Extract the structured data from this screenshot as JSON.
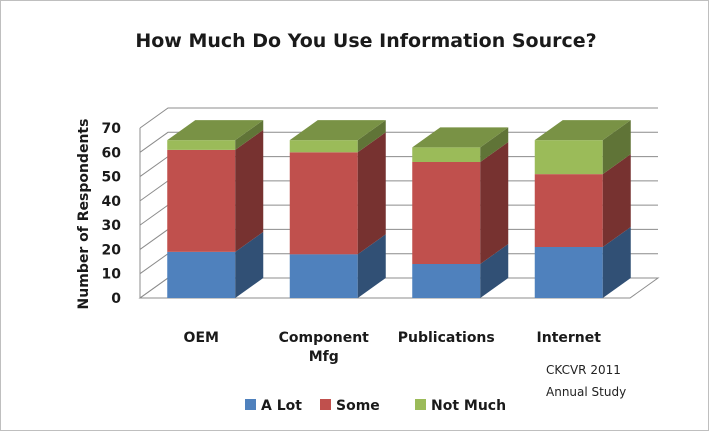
{
  "chart_data": {
    "type": "bar",
    "stacked": true,
    "three_d": true,
    "title": "How Much Do You Use Information Source?",
    "xlabel": "",
    "ylabel": "Number of Respondents",
    "ylim": [
      0,
      70
    ],
    "yticks": [
      0,
      10,
      20,
      30,
      40,
      50,
      60,
      70
    ],
    "categories": [
      "OEM",
      "Component Mfg",
      "Publications",
      "Internet"
    ],
    "category_lines": [
      [
        "OEM"
      ],
      [
        "Component",
        "Mfg"
      ],
      [
        "Publications"
      ],
      [
        "Internet"
      ]
    ],
    "series": [
      {
        "name": "A Lot",
        "values": [
          19,
          18,
          14,
          21
        ],
        "color": "#4f81bd"
      },
      {
        "name": "Some",
        "values": [
          42,
          42,
          42,
          30
        ],
        "color": "#c0504d"
      },
      {
        "name": "Not Much",
        "values": [
          4,
          5,
          6,
          14
        ],
        "color": "#9bbb59"
      }
    ],
    "grid": true,
    "legend_position": "bottom",
    "annotation": [
      "CKCVR 2011",
      "Annual Study"
    ]
  }
}
